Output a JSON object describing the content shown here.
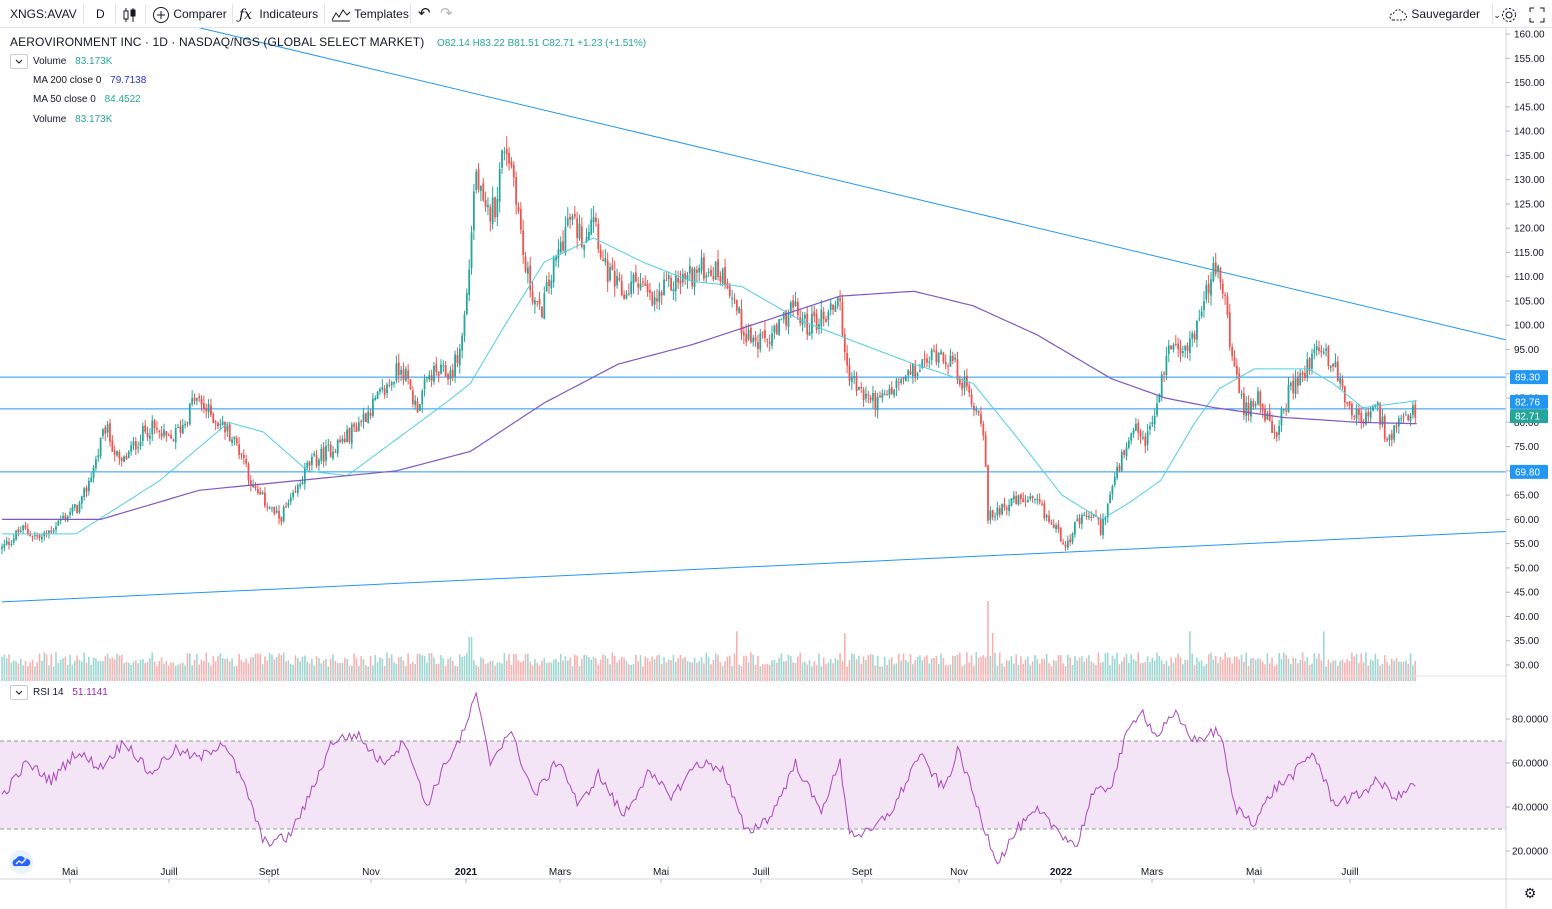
{
  "toolbar": {
    "symbol": "XNGS:AVAV",
    "interval": "D",
    "compare_label": "Comparer",
    "indicators_label": "Indicateurs",
    "templates_label": "Templates",
    "save_label": "Sauvegarder",
    "icons": [
      "candles-icon",
      "plus-circle-icon",
      "fx-icon",
      "templates-icon",
      "undo-icon",
      "redo-icon",
      "cloud-icon",
      "chevron-down-icon",
      "gear-icon",
      "fullscreen-icon"
    ]
  },
  "header": {
    "title": "AEROVIRONMENT INC · 1D · NASDAQ/NGS (GLOBAL SELECT MARKET)",
    "ohlc": "O82.14 H83.22 B81.51 C82.71 +1.23 (+1.51%)"
  },
  "legend": [
    {
      "name": "Volume",
      "value": "83.173K",
      "color": "#26a69a"
    },
    {
      "name": "MA 200 close 0",
      "value": "79.7138",
      "color": "#2b30c9"
    },
    {
      "name": "MA 50 close 0",
      "value": "84.4522",
      "color": "#26a69a"
    },
    {
      "name": "Volume",
      "value": "83.173K",
      "color": "#26a69a"
    }
  ],
  "rsi_legend": {
    "name": "RSI 14",
    "value": "51.1141",
    "color": "#9c27b0"
  },
  "colors": {
    "up": "#26a69a",
    "down": "#ef5350",
    "trendline": "#2196f3",
    "ma50": "#4dd0e1",
    "ma200": "#7e57c2",
    "rsi": "#ab47bc",
    "rsi_band": "#f3e5f5"
  },
  "chart_data": [
    {
      "type": "candlestick",
      "title": "AEROVIRONMENT INC · 1D · NASDAQ/NGS (GLOBAL SELECT MARKET)",
      "x_tick_labels": [
        "Mai",
        "Juill",
        "Sept",
        "Nov",
        "2021",
        "Mars",
        "Mai",
        "Juill",
        "Sept",
        "Nov",
        "2022",
        "Mars",
        "Mai",
        "Juill"
      ],
      "y_tick_labels": [
        "160.00",
        "155.00",
        "150.00",
        "145.00",
        "140.00",
        "135.00",
        "130.00",
        "125.00",
        "120.00",
        "115.00",
        "110.00",
        "105.00",
        "100.00",
        "95.00",
        "90.00",
        "85.00",
        "80.00",
        "75.00",
        "70.00",
        "65.00",
        "60.00",
        "55.00",
        "50.00",
        "45.00",
        "40.00",
        "35.00",
        "30.00"
      ],
      "ylim": [
        27,
        161
      ],
      "last": {
        "open": 82.14,
        "high": 83.22,
        "low": 81.51,
        "close": 82.71,
        "change": 1.23,
        "change_pct": 1.51
      },
      "close_path": [
        {
          "m": 0.0,
          "v": 54
        },
        {
          "m": 0.4,
          "v": 58
        },
        {
          "m": 0.8,
          "v": 56
        },
        {
          "m": 1.2,
          "v": 60
        },
        {
          "m": 1.6,
          "v": 63
        },
        {
          "m": 1.9,
          "v": 72
        },
        {
          "m": 2.1,
          "v": 79
        },
        {
          "m": 2.4,
          "v": 71
        },
        {
          "m": 2.8,
          "v": 77
        },
        {
          "m": 3.0,
          "v": 79
        },
        {
          "m": 3.4,
          "v": 76
        },
        {
          "m": 3.7,
          "v": 80
        },
        {
          "m": 3.9,
          "v": 85
        },
        {
          "m": 4.2,
          "v": 82
        },
        {
          "m": 4.6,
          "v": 78
        },
        {
          "m": 4.9,
          "v": 73
        },
        {
          "m": 5.1,
          "v": 66
        },
        {
          "m": 5.4,
          "v": 63
        },
        {
          "m": 5.6,
          "v": 60
        },
        {
          "m": 5.9,
          "v": 64
        },
        {
          "m": 6.2,
          "v": 71
        },
        {
          "m": 6.6,
          "v": 74
        },
        {
          "m": 7.0,
          "v": 77
        },
        {
          "m": 7.4,
          "v": 82
        },
        {
          "m": 7.8,
          "v": 87
        },
        {
          "m": 8.1,
          "v": 92
        },
        {
          "m": 8.4,
          "v": 83
        },
        {
          "m": 8.7,
          "v": 90
        },
        {
          "m": 9.1,
          "v": 90
        },
        {
          "m": 9.3,
          "v": 95
        },
        {
          "m": 9.45,
          "v": 108
        },
        {
          "m": 9.6,
          "v": 132
        },
        {
          "m": 9.8,
          "v": 122
        },
        {
          "m": 10.0,
          "v": 125
        },
        {
          "m": 10.2,
          "v": 138
        },
        {
          "m": 10.4,
          "v": 130
        },
        {
          "m": 10.6,
          "v": 112
        },
        {
          "m": 10.9,
          "v": 102
        },
        {
          "m": 11.2,
          "v": 112
        },
        {
          "m": 11.5,
          "v": 122
        },
        {
          "m": 11.8,
          "v": 118
        },
        {
          "m": 12.0,
          "v": 124
        },
        {
          "m": 12.2,
          "v": 112
        },
        {
          "m": 12.6,
          "v": 106
        },
        {
          "m": 12.9,
          "v": 110
        },
        {
          "m": 13.2,
          "v": 104
        },
        {
          "m": 13.5,
          "v": 108
        },
        {
          "m": 13.9,
          "v": 110
        },
        {
          "m": 14.3,
          "v": 112
        },
        {
          "m": 14.7,
          "v": 110
        },
        {
          "m": 15.0,
          "v": 100
        },
        {
          "m": 15.3,
          "v": 96
        },
        {
          "m": 15.7,
          "v": 98
        },
        {
          "m": 16.0,
          "v": 104
        },
        {
          "m": 16.3,
          "v": 100
        },
        {
          "m": 16.7,
          "v": 102
        },
        {
          "m": 17.0,
          "v": 106
        },
        {
          "m": 17.1,
          "v": 92
        },
        {
          "m": 17.4,
          "v": 86
        },
        {
          "m": 17.8,
          "v": 84
        },
        {
          "m": 18.2,
          "v": 88
        },
        {
          "m": 18.6,
          "v": 91
        },
        {
          "m": 19.0,
          "v": 95
        },
        {
          "m": 19.3,
          "v": 92
        },
        {
          "m": 19.6,
          "v": 86
        },
        {
          "m": 19.9,
          "v": 80
        },
        {
          "m": 20.0,
          "v": 60
        },
        {
          "m": 20.3,
          "v": 63
        },
        {
          "m": 20.7,
          "v": 64
        },
        {
          "m": 21.0,
          "v": 63
        },
        {
          "m": 21.3,
          "v": 59
        },
        {
          "m": 21.6,
          "v": 55
        },
        {
          "m": 21.8,
          "v": 59
        },
        {
          "m": 22.1,
          "v": 61
        },
        {
          "m": 22.3,
          "v": 58
        },
        {
          "m": 22.5,
          "v": 66
        },
        {
          "m": 22.7,
          "v": 72
        },
        {
          "m": 23.0,
          "v": 78
        },
        {
          "m": 23.2,
          "v": 76
        },
        {
          "m": 23.4,
          "v": 82
        },
        {
          "m": 23.6,
          "v": 93
        },
        {
          "m": 23.8,
          "v": 98
        },
        {
          "m": 24.0,
          "v": 94
        },
        {
          "m": 24.3,
          "v": 102
        },
        {
          "m": 24.6,
          "v": 112
        },
        {
          "m": 24.8,
          "v": 106
        },
        {
          "m": 25.0,
          "v": 90
        },
        {
          "m": 25.2,
          "v": 82
        },
        {
          "m": 25.5,
          "v": 86
        },
        {
          "m": 25.8,
          "v": 76
        },
        {
          "m": 26.1,
          "v": 86
        },
        {
          "m": 26.4,
          "v": 90
        },
        {
          "m": 26.7,
          "v": 96
        },
        {
          "m": 27.0,
          "v": 92
        },
        {
          "m": 27.3,
          "v": 84
        },
        {
          "m": 27.6,
          "v": 80
        },
        {
          "m": 27.9,
          "v": 83
        },
        {
          "m": 28.1,
          "v": 76
        },
        {
          "m": 28.4,
          "v": 80
        },
        {
          "m": 28.7,
          "v": 82.71
        }
      ],
      "volume_ylim": [
        0,
        1
      ],
      "volume_spikes": [
        {
          "m": 9.5,
          "v": 0.55
        },
        {
          "m": 14.9,
          "v": 0.62
        },
        {
          "m": 17.1,
          "v": 0.6
        },
        {
          "m": 20.0,
          "v": 1.0
        },
        {
          "m": 20.1,
          "v": 0.6
        },
        {
          "m": 24.1,
          "v": 0.62
        },
        {
          "m": 26.8,
          "v": 0.62
        }
      ],
      "ma50_path": [
        {
          "m": 0.0,
          "v": 57
        },
        {
          "m": 1.5,
          "v": 57
        },
        {
          "m": 3.2,
          "v": 68
        },
        {
          "m": 4.6,
          "v": 80
        },
        {
          "m": 5.3,
          "v": 78
        },
        {
          "m": 6.2,
          "v": 70
        },
        {
          "m": 7.0,
          "v": 69
        },
        {
          "m": 7.8,
          "v": 75
        },
        {
          "m": 9.0,
          "v": 84
        },
        {
          "m": 9.5,
          "v": 88
        },
        {
          "m": 10.2,
          "v": 100
        },
        {
          "m": 11.0,
          "v": 113
        },
        {
          "m": 12.0,
          "v": 118
        },
        {
          "m": 13.0,
          "v": 113
        },
        {
          "m": 14.0,
          "v": 109
        },
        {
          "m": 15.0,
          "v": 108
        },
        {
          "m": 16.2,
          "v": 101
        },
        {
          "m": 17.2,
          "v": 97
        },
        {
          "m": 18.5,
          "v": 92
        },
        {
          "m": 19.7,
          "v": 88
        },
        {
          "m": 20.5,
          "v": 78
        },
        {
          "m": 21.5,
          "v": 65
        },
        {
          "m": 22.3,
          "v": 60
        },
        {
          "m": 22.8,
          "v": 63
        },
        {
          "m": 23.5,
          "v": 68
        },
        {
          "m": 24.2,
          "v": 80
        },
        {
          "m": 24.7,
          "v": 87
        },
        {
          "m": 25.4,
          "v": 91
        },
        {
          "m": 26.5,
          "v": 91
        },
        {
          "m": 27.0,
          "v": 88
        },
        {
          "m": 27.6,
          "v": 83
        },
        {
          "m": 28.7,
          "v": 84.45
        }
      ],
      "ma200_path": [
        {
          "m": 0.0,
          "v": 60
        },
        {
          "m": 2.0,
          "v": 60
        },
        {
          "m": 4.0,
          "v": 66
        },
        {
          "m": 6.0,
          "v": 68
        },
        {
          "m": 8.0,
          "v": 70
        },
        {
          "m": 9.5,
          "v": 74
        },
        {
          "m": 11.0,
          "v": 84
        },
        {
          "m": 12.5,
          "v": 92
        },
        {
          "m": 14.0,
          "v": 96
        },
        {
          "m": 15.5,
          "v": 101
        },
        {
          "m": 17.0,
          "v": 106
        },
        {
          "m": 18.5,
          "v": 107
        },
        {
          "m": 19.7,
          "v": 104
        },
        {
          "m": 21.0,
          "v": 98
        },
        {
          "m": 22.5,
          "v": 89
        },
        {
          "m": 23.6,
          "v": 85
        },
        {
          "m": 24.6,
          "v": 83
        },
        {
          "m": 26.0,
          "v": 81
        },
        {
          "m": 27.5,
          "v": 80
        },
        {
          "m": 28.7,
          "v": 79.71
        }
      ],
      "trendlines": [
        {
          "from": {
            "m": 0.0,
            "v": 171
          },
          "to": {
            "m": 30.5,
            "v": 97
          }
        },
        {
          "from": {
            "m": 0.0,
            "v": 43
          },
          "to": {
            "m": 30.5,
            "v": 57.5
          }
        }
      ],
      "horizontal_lines": [
        89.3,
        82.76,
        69.8
      ],
      "price_labels": [
        {
          "value": 89.3,
          "label": "89.30",
          "color": "#2196f3"
        },
        {
          "value": 82.76,
          "label": "82.76",
          "color": "#2196f3"
        },
        {
          "value": 82.71,
          "label": "82.71",
          "color": "#26a69a"
        },
        {
          "value": 69.8,
          "label": "69.80",
          "color": "#2196f3"
        }
      ]
    },
    {
      "type": "line",
      "title": "RSI 14",
      "y_tick_labels": [
        "80.0000",
        "60.0000",
        "40.0000",
        "20.0000"
      ],
      "ylim": [
        10,
        90
      ],
      "band": [
        30,
        70
      ],
      "series": [
        {
          "name": "RSI 14",
          "values": [
            {
              "m": 0.0,
              "v": 45
            },
            {
              "m": 0.5,
              "v": 60
            },
            {
              "m": 1.0,
              "v": 52
            },
            {
              "m": 1.5,
              "v": 65
            },
            {
              "m": 2.0,
              "v": 58
            },
            {
              "m": 2.5,
              "v": 70
            },
            {
              "m": 3.0,
              "v": 55
            },
            {
              "m": 3.5,
              "v": 66
            },
            {
              "m": 4.0,
              "v": 62
            },
            {
              "m": 4.5,
              "v": 70
            },
            {
              "m": 5.0,
              "v": 45
            },
            {
              "m": 5.3,
              "v": 24
            },
            {
              "m": 5.8,
              "v": 26
            },
            {
              "m": 6.2,
              "v": 43
            },
            {
              "m": 6.7,
              "v": 70
            },
            {
              "m": 7.2,
              "v": 73
            },
            {
              "m": 7.7,
              "v": 60
            },
            {
              "m": 8.2,
              "v": 70
            },
            {
              "m": 8.6,
              "v": 40
            },
            {
              "m": 9.0,
              "v": 60
            },
            {
              "m": 9.4,
              "v": 75
            },
            {
              "m": 9.6,
              "v": 92
            },
            {
              "m": 9.9,
              "v": 60
            },
            {
              "m": 10.3,
              "v": 75
            },
            {
              "m": 10.8,
              "v": 45
            },
            {
              "m": 11.3,
              "v": 62
            },
            {
              "m": 11.7,
              "v": 40
            },
            {
              "m": 12.1,
              "v": 55
            },
            {
              "m": 12.6,
              "v": 36
            },
            {
              "m": 13.1,
              "v": 55
            },
            {
              "m": 13.6,
              "v": 45
            },
            {
              "m": 14.1,
              "v": 60
            },
            {
              "m": 14.6,
              "v": 58
            },
            {
              "m": 14.9,
              "v": 40
            },
            {
              "m": 15.1,
              "v": 28
            },
            {
              "m": 15.6,
              "v": 36
            },
            {
              "m": 16.1,
              "v": 60
            },
            {
              "m": 16.6,
              "v": 38
            },
            {
              "m": 17.0,
              "v": 60
            },
            {
              "m": 17.2,
              "v": 28
            },
            {
              "m": 17.6,
              "v": 28
            },
            {
              "m": 18.1,
              "v": 40
            },
            {
              "m": 18.6,
              "v": 64
            },
            {
              "m": 19.1,
              "v": 48
            },
            {
              "m": 19.4,
              "v": 66
            },
            {
              "m": 19.9,
              "v": 32
            },
            {
              "m": 20.2,
              "v": 15
            },
            {
              "m": 20.6,
              "v": 30
            },
            {
              "m": 21.0,
              "v": 38
            },
            {
              "m": 21.5,
              "v": 28
            },
            {
              "m": 21.8,
              "v": 22
            },
            {
              "m": 22.1,
              "v": 45
            },
            {
              "m": 22.5,
              "v": 50
            },
            {
              "m": 22.8,
              "v": 72
            },
            {
              "m": 23.1,
              "v": 85
            },
            {
              "m": 23.4,
              "v": 72
            },
            {
              "m": 23.8,
              "v": 82
            },
            {
              "m": 24.2,
              "v": 70
            },
            {
              "m": 24.7,
              "v": 75
            },
            {
              "m": 25.0,
              "v": 40
            },
            {
              "m": 25.4,
              "v": 33
            },
            {
              "m": 25.8,
              "v": 48
            },
            {
              "m": 26.2,
              "v": 55
            },
            {
              "m": 26.6,
              "v": 65
            },
            {
              "m": 27.0,
              "v": 42
            },
            {
              "m": 27.5,
              "v": 45
            },
            {
              "m": 27.9,
              "v": 52
            },
            {
              "m": 28.3,
              "v": 44
            },
            {
              "m": 28.7,
              "v": 51.11
            }
          ]
        }
      ]
    }
  ]
}
